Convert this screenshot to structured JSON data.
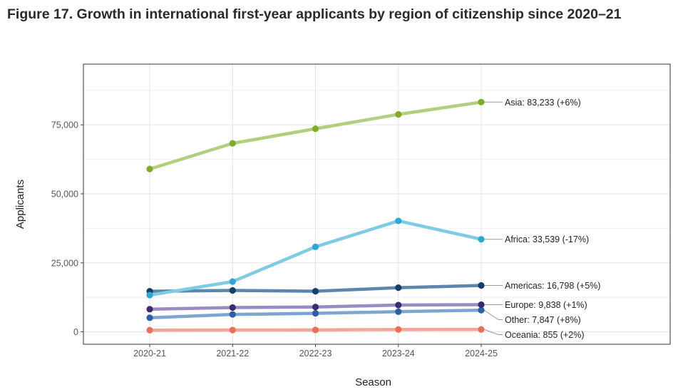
{
  "figure_title": "Figure 17. Growth in international first-year applicants by region of citizenship since 2020–21",
  "chart_data": {
    "type": "line",
    "title": "Figure 17. Growth in international first-year applicants by region of citizenship since 2020–21",
    "xlabel": "Season",
    "ylabel": "Applicants",
    "categories": [
      "2020-21",
      "2021-22",
      "2022-23",
      "2023-24",
      "2024-25"
    ],
    "y_ticks": [
      0,
      25000,
      50000,
      75000
    ],
    "y_tick_labels": [
      "0",
      "25,000",
      "50,000",
      "75,000"
    ],
    "ylim": [
      -4500,
      97000
    ],
    "grid": true,
    "series": [
      {
        "name": "Asia",
        "values": [
          59000,
          68300,
          73600,
          78800,
          83233
        ],
        "line_color": "#b3cf7e",
        "point_color": "#7faa2a",
        "label": "Asia: 83,233 (+6%)"
      },
      {
        "name": "Africa",
        "values": [
          13300,
          18200,
          30800,
          40200,
          33539
        ],
        "line_color": "#7fcbe2",
        "point_color": "#2fa8d1",
        "label": "Africa: 33,539 (-17%)"
      },
      {
        "name": "Americas",
        "values": [
          14700,
          15000,
          14700,
          16000,
          16798
        ],
        "line_color": "#5c86ad",
        "point_color": "#163e6a",
        "label": "Americas: 16,798 (+5%)"
      },
      {
        "name": "Europe",
        "values": [
          8200,
          8800,
          9000,
          9700,
          9838
        ],
        "line_color": "#9a8cc2",
        "point_color": "#3d2c6b",
        "label": "Europe: 9,838 (+1%)"
      },
      {
        "name": "Other",
        "values": [
          5100,
          6300,
          6700,
          7300,
          7847
        ],
        "line_color": "#7ea5d0",
        "point_color": "#2d5fa3",
        "label": "Other: 7,847 (+8%)"
      },
      {
        "name": "Oceania",
        "values": [
          600,
          650,
          700,
          840,
          855
        ],
        "line_color": "#f0a796",
        "point_color": "#e6715a",
        "label": "Oceania: 855 (+2%)"
      }
    ]
  }
}
